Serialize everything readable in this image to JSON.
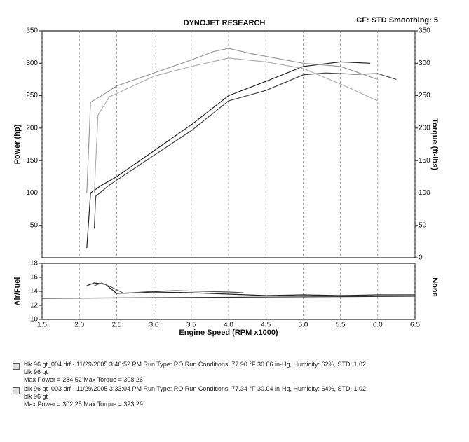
{
  "header": {
    "title": "DYNOJET RESEARCH",
    "settings": "CF: STD  Smoothing: 5"
  },
  "chart_data": [
    {
      "type": "line",
      "ylabel": "Power (hp)",
      "y2label": "Torque (ft-lbs)",
      "xlim": [
        1.5,
        6.5
      ],
      "xticks": [
        1.5,
        2,
        2.5,
        3,
        3.5,
        4,
        4.5,
        5,
        5.5,
        6,
        6.5
      ],
      "ylim": [
        0,
        350
      ],
      "yticks": [
        50,
        100,
        150,
        200,
        250,
        300,
        350
      ],
      "y2lim": [
        0,
        350
      ],
      "y2ticks": [
        0,
        50,
        100,
        150,
        200,
        250,
        300,
        350
      ],
      "grid": true,
      "series": [
        {
          "color": "#222222",
          "x": [
            2.1,
            2.15,
            2.3,
            2.5,
            3.0,
            3.5,
            4.0,
            4.5,
            5.0,
            5.5,
            5.9
          ],
          "values": [
            15,
            100,
            112,
            125,
            165,
            205,
            250,
            272,
            295,
            302,
            300
          ]
        },
        {
          "color": "#444444",
          "x": [
            2.2,
            2.22,
            2.4,
            3.0,
            3.5,
            4.0,
            4.5,
            5.0,
            5.3,
            5.7,
            6.0,
            6.25
          ],
          "values": [
            45,
            95,
            112,
            158,
            196,
            242,
            258,
            282,
            285,
            283,
            284,
            275
          ]
        },
        {
          "color": "#9a9a9a",
          "axis": "y2",
          "x": [
            2.1,
            2.15,
            2.3,
            2.5,
            3.0,
            3.5,
            3.8,
            4.0,
            4.3,
            5.0,
            5.5,
            6.0
          ],
          "values": [
            100,
            240,
            250,
            265,
            285,
            305,
            318,
            323,
            315,
            300,
            295,
            275
          ]
        },
        {
          "color": "#b0b0b0",
          "axis": "y2",
          "x": [
            2.2,
            2.25,
            2.4,
            3.0,
            3.5,
            4.0,
            4.5,
            5.0,
            5.5,
            6.0
          ],
          "values": [
            100,
            220,
            248,
            280,
            295,
            308,
            302,
            292,
            268,
            242
          ]
        }
      ]
    },
    {
      "type": "line",
      "ylabel": "Air/Fuel",
      "y2label": "None",
      "xlabel": "Engine Speed (RPM x1000)",
      "xlim": [
        1.5,
        6.5
      ],
      "xticks": [
        1.5,
        {
          "value": 2,
          "label": "2.0"
        },
        2.5,
        {
          "value": 3,
          "label": "3.0"
        },
        3.5,
        {
          "value": 4,
          "label": "4.0"
        },
        4.5,
        {
          "value": 5,
          "label": "5.0"
        },
        5.5,
        {
          "value": 6,
          "label": "6.0"
        },
        6.5
      ],
      "ylim": [
        10,
        18
      ],
      "yticks": [
        10,
        12,
        14,
        16,
        18
      ],
      "grid": true,
      "series": [
        {
          "color": "#222222",
          "x": [
            2.1,
            2.2,
            2.35,
            2.5,
            3.0,
            3.5,
            4.0,
            4.5,
            5.0,
            5.5,
            6.0,
            6.5
          ],
          "values": [
            14.8,
            15.2,
            15.0,
            13.7,
            13.9,
            13.8,
            13.6,
            13.4,
            13.5,
            13.4,
            13.5,
            13.5
          ]
        },
        {
          "color": "#555555",
          "x": [
            2.2,
            2.3,
            2.45,
            2.6,
            3.0,
            3.3,
            4.0,
            4.2
          ],
          "values": [
            14.8,
            15.2,
            14.5,
            13.7,
            14.0,
            14.1,
            13.9,
            13.8
          ]
        },
        {
          "color": "#333333",
          "x": [
            1.5,
            6.5
          ],
          "values": [
            13,
            13.3
          ]
        }
      ]
    }
  ],
  "runs": [
    {
      "line1": "blk 96 gt_004 drf - 11/29/2005 3:46:52 PM  Run Type: RO  Run Conditions: 77.90 °F  30.06 in-Hg,  Humidity:  62%,  STD: 1.02",
      "line2": "blk 96 gt",
      "line3": "Max Power = 284.52  Max Torque = 308.26"
    },
    {
      "line1": "blk 96 gt_003 drf - 11/29/2005 3:33:04 PM  Run Type: RO  Run Conditions: 77.34 °F  30.04 in-Hg,  Humidity:  64%,  STD: 1.02",
      "line2": "blk 96 gt",
      "line3": "Max Power = 302.25  Max Torque = 323.29"
    }
  ]
}
